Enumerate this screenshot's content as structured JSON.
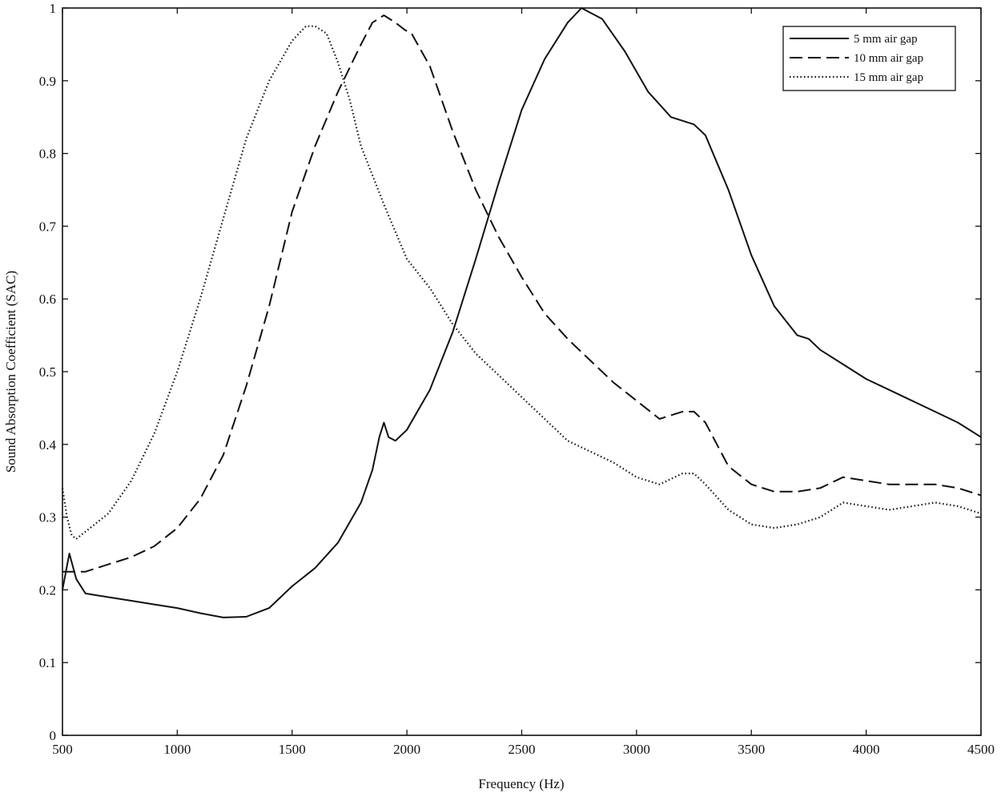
{
  "chart_data": {
    "type": "line",
    "title": "",
    "xlabel": "Frequency (Hz)",
    "ylabel": "Sound Absorption Coefficient (SAC)",
    "xlim": [
      500,
      4500
    ],
    "ylim": [
      0,
      1
    ],
    "xticks": [
      500,
      1000,
      1500,
      2000,
      2500,
      3000,
      3500,
      4000,
      4500
    ],
    "yticks": [
      0,
      0.1,
      0.2,
      0.3,
      0.4,
      0.5,
      0.6,
      0.7,
      0.8,
      0.9,
      1
    ],
    "ytick_labels": [
      "0",
      "0.1",
      "0.2",
      "0.3",
      "0.4",
      "0.5",
      "0.6",
      "0.7",
      "0.8",
      "0.9",
      "1"
    ],
    "grid": false,
    "legend_position": "top-right",
    "series": [
      {
        "name": "5 mm air gap",
        "style": "solid",
        "color": "#111111",
        "x": [
          500,
          530,
          560,
          600,
          700,
          800,
          900,
          1000,
          1100,
          1200,
          1300,
          1400,
          1500,
          1600,
          1700,
          1800,
          1850,
          1880,
          1900,
          1920,
          1950,
          2000,
          2100,
          2200,
          2300,
          2400,
          2500,
          2600,
          2700,
          2760,
          2850,
          2950,
          3050,
          3150,
          3250,
          3300,
          3400,
          3500,
          3600,
          3700,
          3750,
          3800,
          3900,
          4000,
          4100,
          4200,
          4300,
          4400,
          4500
        ],
        "y": [
          0.2,
          0.25,
          0.215,
          0.195,
          0.19,
          0.185,
          0.18,
          0.175,
          0.168,
          0.162,
          0.163,
          0.175,
          0.205,
          0.23,
          0.265,
          0.32,
          0.365,
          0.41,
          0.43,
          0.41,
          0.405,
          0.42,
          0.475,
          0.555,
          0.655,
          0.76,
          0.86,
          0.93,
          0.98,
          1.0,
          0.985,
          0.94,
          0.885,
          0.85,
          0.84,
          0.825,
          0.75,
          0.66,
          0.59,
          0.55,
          0.545,
          0.53,
          0.51,
          0.49,
          0.475,
          0.46,
          0.445,
          0.43,
          0.41
        ]
      },
      {
        "name": "10 mm air gap",
        "style": "dashed",
        "color": "#111111",
        "x": [
          500,
          550,
          600,
          700,
          800,
          900,
          1000,
          1100,
          1200,
          1300,
          1400,
          1500,
          1600,
          1700,
          1800,
          1850,
          1900,
          1950,
          1990,
          2020,
          2100,
          2200,
          2300,
          2400,
          2500,
          2600,
          2700,
          2800,
          2900,
          3000,
          3100,
          3200,
          3250,
          3300,
          3400,
          3500,
          3600,
          3700,
          3800,
          3900,
          4000,
          4100,
          4200,
          4300,
          4400,
          4500
        ],
        "y": [
          0.225,
          0.225,
          0.225,
          0.235,
          0.245,
          0.26,
          0.285,
          0.325,
          0.385,
          0.48,
          0.59,
          0.72,
          0.81,
          0.885,
          0.95,
          0.98,
          0.99,
          0.98,
          0.97,
          0.965,
          0.92,
          0.83,
          0.75,
          0.685,
          0.63,
          0.58,
          0.545,
          0.515,
          0.485,
          0.46,
          0.435,
          0.445,
          0.445,
          0.43,
          0.37,
          0.345,
          0.335,
          0.335,
          0.34,
          0.355,
          0.35,
          0.345,
          0.345,
          0.345,
          0.34,
          0.33
        ]
      },
      {
        "name": "15 mm air gap",
        "style": "dotted",
        "color": "#111111",
        "x": [
          500,
          520,
          540,
          560,
          600,
          700,
          800,
          900,
          1000,
          1100,
          1200,
          1300,
          1400,
          1500,
          1560,
          1600,
          1650,
          1700,
          1750,
          1800,
          1900,
          2000,
          2100,
          2200,
          2300,
          2400,
          2500,
          2600,
          2700,
          2800,
          2900,
          3000,
          3100,
          3200,
          3250,
          3300,
          3400,
          3500,
          3600,
          3700,
          3800,
          3900,
          4000,
          4100,
          4200,
          4300,
          4400,
          4500
        ],
        "y": [
          0.34,
          0.3,
          0.275,
          0.27,
          0.28,
          0.305,
          0.35,
          0.415,
          0.5,
          0.6,
          0.71,
          0.82,
          0.9,
          0.955,
          0.975,
          0.975,
          0.965,
          0.925,
          0.875,
          0.81,
          0.73,
          0.655,
          0.615,
          0.565,
          0.525,
          0.495,
          0.465,
          0.435,
          0.405,
          0.39,
          0.375,
          0.355,
          0.345,
          0.36,
          0.36,
          0.345,
          0.31,
          0.29,
          0.285,
          0.29,
          0.3,
          0.32,
          0.315,
          0.31,
          0.315,
          0.32,
          0.315,
          0.305
        ]
      }
    ]
  }
}
